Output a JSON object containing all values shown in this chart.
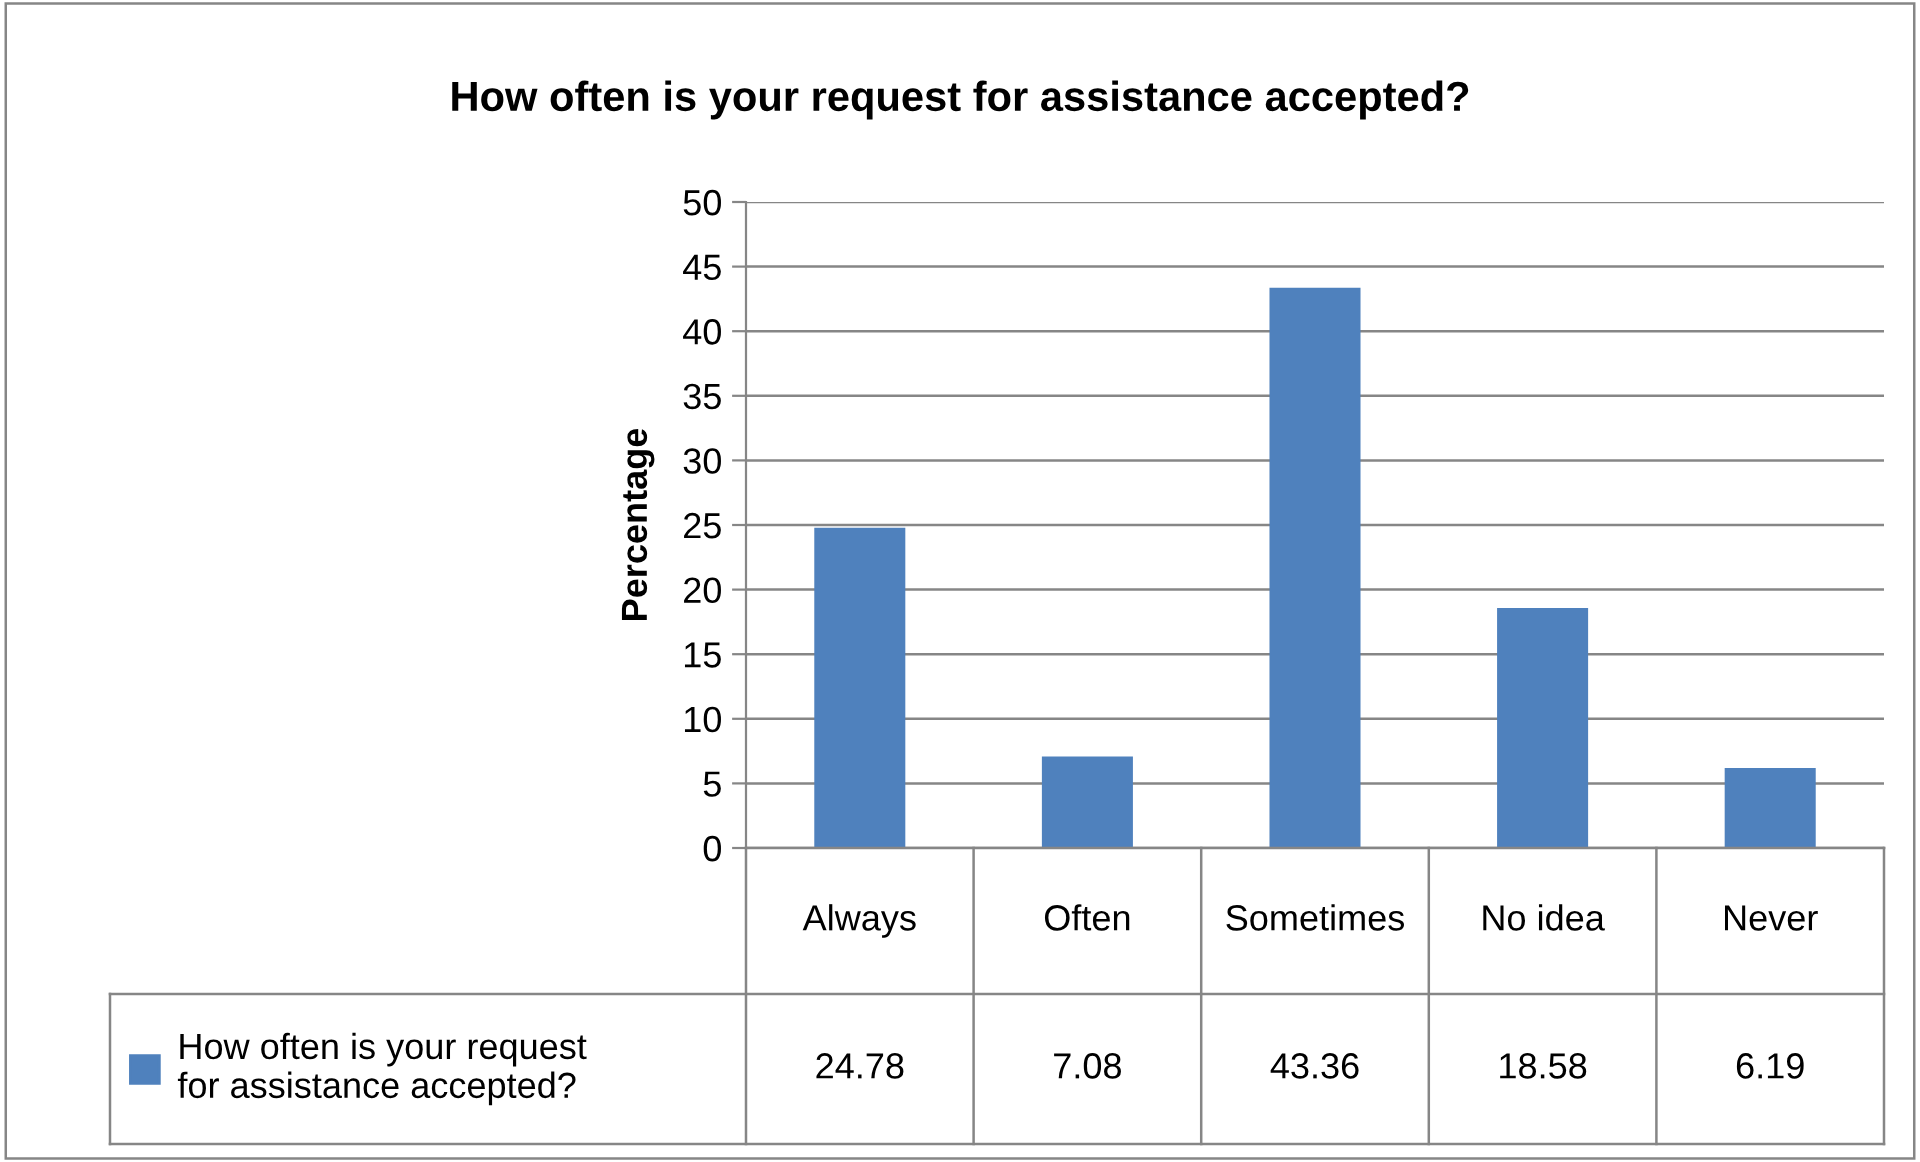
{
  "chart_data": {
    "type": "bar",
    "title": "How often is your request for assistance accepted?",
    "ylabel": "Percentage",
    "categories": [
      "Always",
      "Often",
      "Sometimes",
      "No idea",
      "Never"
    ],
    "series": [
      {
        "name": "How often is your request for assistance accepted?",
        "color": "#4f81bd",
        "values": [
          24.78,
          7.08,
          43.36,
          18.58,
          6.19
        ]
      }
    ],
    "ylim": [
      0,
      50
    ],
    "yticks": [
      0,
      5,
      10,
      15,
      20,
      25,
      30,
      35,
      40,
      45,
      50
    ],
    "grid": "y",
    "legend": "bottom",
    "data_labels": true
  }
}
